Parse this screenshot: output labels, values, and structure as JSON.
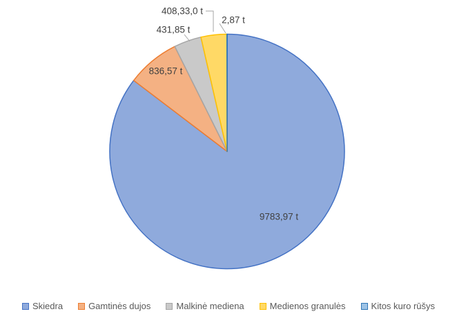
{
  "chart_data": {
    "type": "pie",
    "title": "",
    "unit": "t",
    "legend_position": "bottom",
    "start_angle_deg": 0,
    "direction": "clockwise",
    "total": 11463.59,
    "slices": [
      {
        "name": "Skiedra",
        "value": 9783.97,
        "label": "9783,97 t",
        "fill": "#8FAADC",
        "border": "#4472C4"
      },
      {
        "name": "Gamtinės dujos",
        "value": 836.57,
        "label": "836,57 t",
        "fill": "#F4B183",
        "border": "#ED7D31"
      },
      {
        "name": "Malkinė mediena",
        "value": 431.85,
        "label": "431,85 t",
        "fill": "#C9C9C9",
        "border": "#A5A5A5"
      },
      {
        "name": "Medienos granulės",
        "value": 408.33,
        "label": "408,33,0 t",
        "fill": "#FFD966",
        "border": "#FFC000"
      },
      {
        "name": "Kitos kuro rūšys",
        "value": 2.87,
        "label": "2,87 t",
        "fill": "#9DC3E6",
        "border": "#2E75B6"
      }
    ]
  },
  "colors": {
    "data_label_text": "#404040",
    "legend_text": "#595959",
    "leader_line": "#A6A6A6",
    "background": "#FFFFFF"
  }
}
